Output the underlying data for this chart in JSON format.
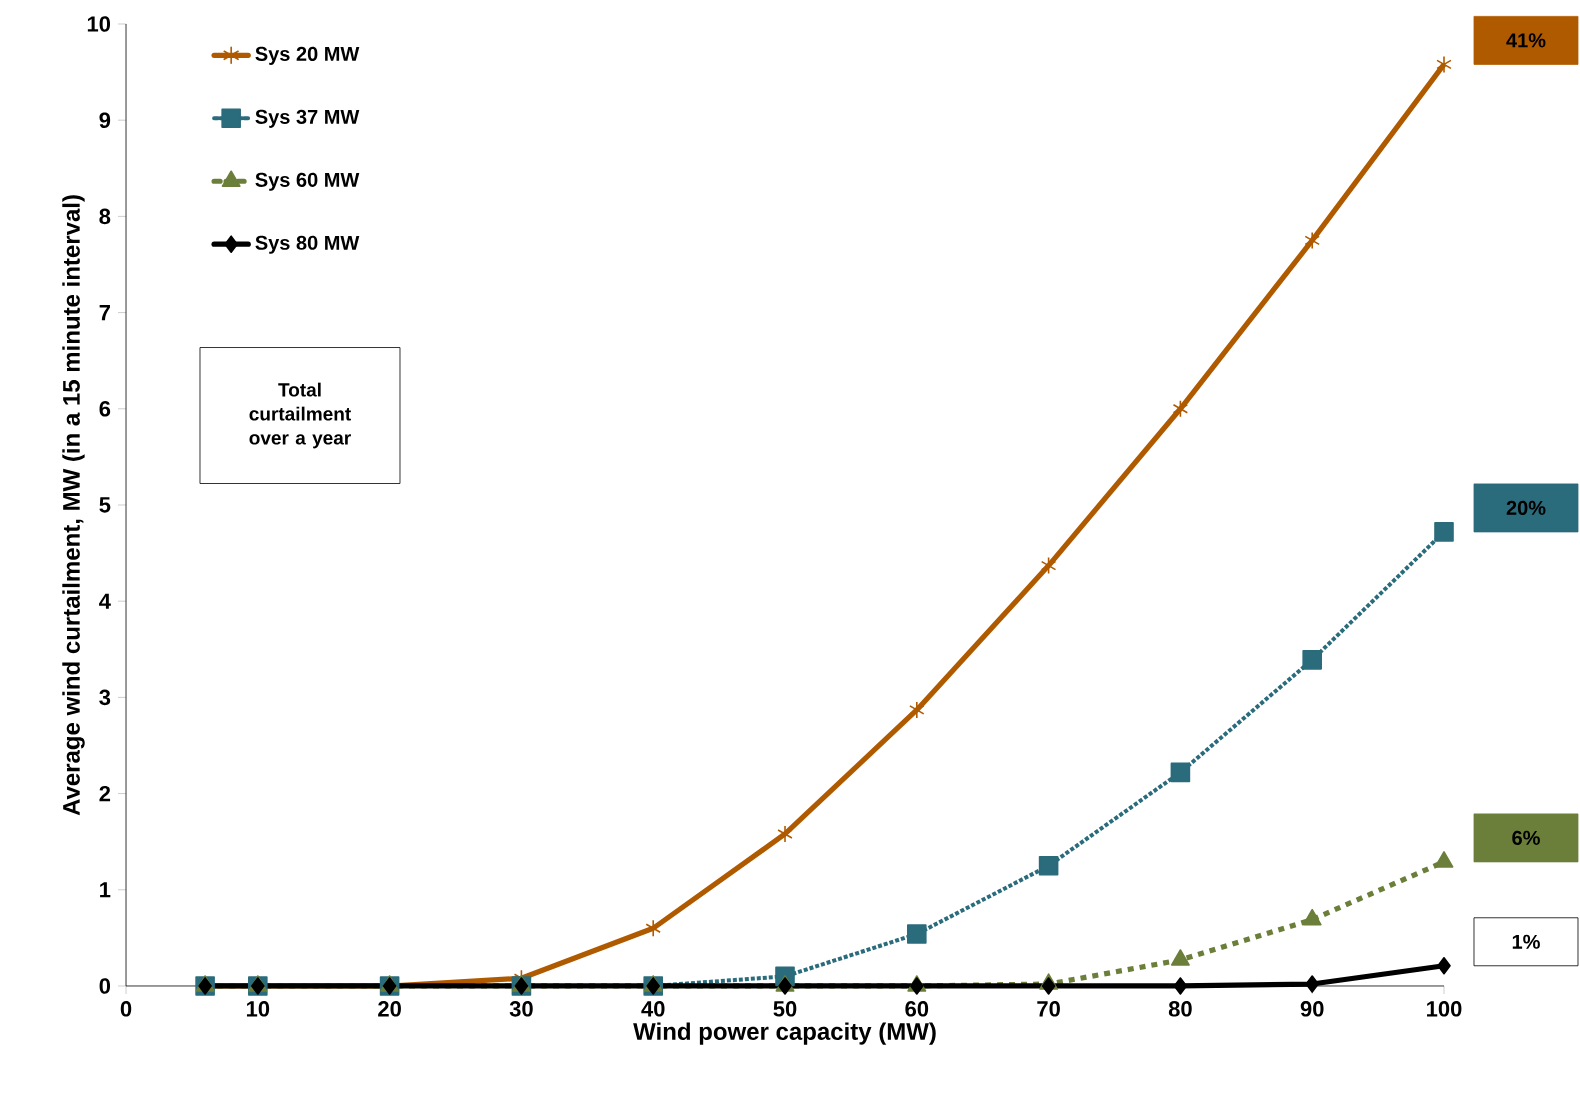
{
  "chart_data": {
    "type": "line",
    "xlabel": "Wind power capacity (MW)",
    "ylabel": "Average wind curtailment, MW (in a 15 minute interval)",
    "x": [
      6,
      10,
      20,
      30,
      40,
      50,
      60,
      70,
      80,
      90,
      100
    ],
    "series": [
      {
        "name": "Sys 20 MW",
        "color": "#b05a00",
        "marker": "cross",
        "line_style": "solid",
        "values": [
          0,
          0,
          0,
          0.08,
          0.6,
          1.58,
          2.87,
          4.37,
          6.0,
          7.75,
          9.58
        ]
      },
      {
        "name": "Sys 37 MW",
        "color": "#2a6b7c",
        "marker": "square",
        "line_style": "dotted",
        "values": [
          0,
          0,
          0,
          0,
          0,
          0.1,
          0.54,
          1.25,
          2.22,
          3.39,
          4.72
        ]
      },
      {
        "name": "Sys 60 MW",
        "color": "#6b7f3a",
        "marker": "triangle",
        "line_style": "dashed",
        "values": [
          0,
          0,
          0,
          0,
          0,
          0,
          0,
          0.02,
          0.27,
          0.69,
          1.29
        ]
      },
      {
        "name": "Sys 80 MW",
        "color": "#000000",
        "marker": "diamond",
        "line_style": "solid",
        "values": [
          0,
          0,
          0,
          0,
          0,
          0,
          0,
          0,
          0,
          0.02,
          0.21
        ]
      }
    ],
    "xlim": [
      0,
      100
    ],
    "xticks": [
      0,
      10,
      20,
      30,
      40,
      50,
      60,
      70,
      80,
      90,
      100
    ],
    "ylim": [
      0,
      10
    ],
    "yticks": [
      0,
      1,
      2,
      3,
      4,
      5,
      6,
      7,
      8,
      9,
      10
    ],
    "grid": false,
    "legend": "top left",
    "annotations": [
      "41%",
      "20%",
      "6%",
      "1%",
      "Total curtailment over a year"
    ]
  }
}
